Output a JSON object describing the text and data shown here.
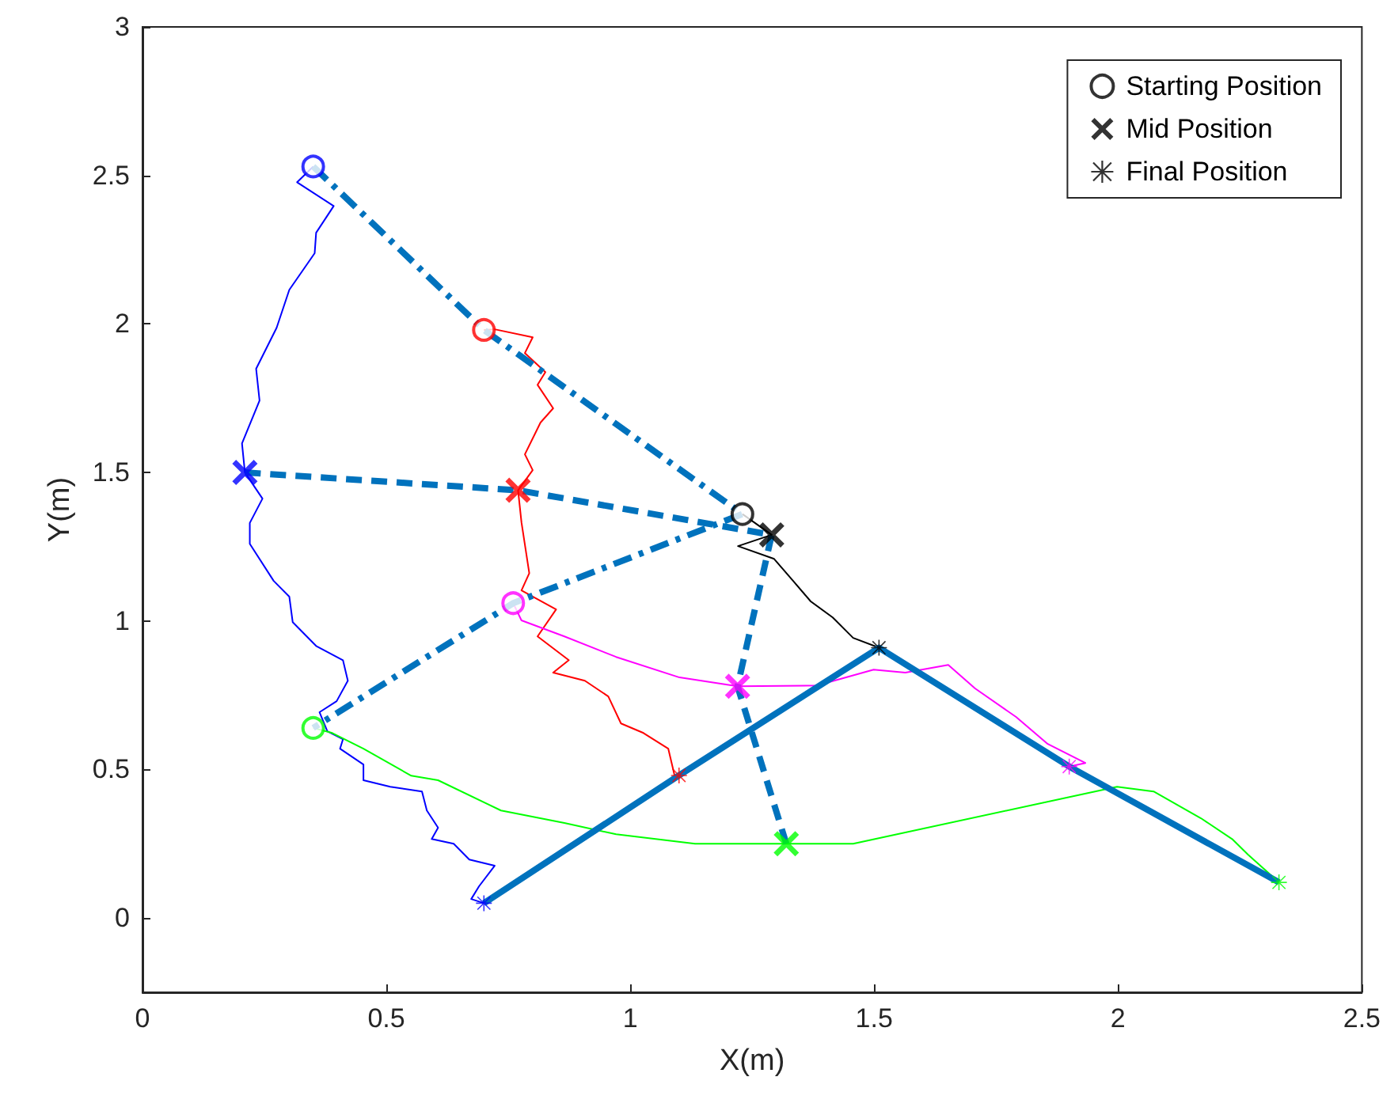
{
  "chart_data": {
    "type": "line",
    "xlabel": "X(m)",
    "ylabel": "Y(m)",
    "xlim": [
      0,
      2.5
    ],
    "xticks": [
      0,
      0.5,
      1,
      1.5,
      2,
      2.5
    ],
    "ylim": [
      -0.25,
      3
    ],
    "yticks": [
      0,
      0.5,
      1,
      1.5,
      2,
      2.5,
      3
    ],
    "grid": false,
    "legend": "top right",
    "series": [
      {
        "color": "#0000ff",
        "marker": "none",
        "line_style": "solid",
        "x": [
          0.35,
          0.317,
          0.392,
          0.356,
          0.353,
          0.301,
          0.275,
          0.233,
          0.24,
          0.204,
          0.21,
          0.246,
          0.22,
          0.22,
          0.269,
          0.301,
          0.308,
          0.356,
          0.411,
          0.421,
          0.398,
          0.363,
          0.379,
          0.411,
          0.405,
          0.453,
          0.453,
          0.508,
          0.573,
          0.583,
          0.606,
          0.593,
          0.638,
          0.67,
          0.722,
          0.69,
          0.674,
          0.7
        ],
        "values": [
          2.53,
          2.477,
          2.397,
          2.307,
          2.238,
          2.115,
          1.987,
          1.849,
          1.742,
          1.598,
          1.5,
          1.412,
          1.33,
          1.26,
          1.135,
          1.082,
          0.996,
          0.916,
          0.868,
          0.799,
          0.73,
          0.693,
          0.629,
          0.602,
          0.57,
          0.517,
          0.464,
          0.442,
          0.426,
          0.362,
          0.304,
          0.266,
          0.25,
          0.197,
          0.176,
          0.107,
          0.064,
          0.05
        ]
      },
      {
        "color": "#ff0000",
        "marker": "none",
        "line_style": "solid",
        "x": [
          0.7,
          0.722,
          0.8,
          0.784,
          0.826,
          0.81,
          0.842,
          0.816,
          0.784,
          0.8,
          0.77,
          0.777,
          0.793,
          0.777,
          0.848,
          0.81,
          0.874,
          0.842,
          0.907,
          0.955,
          0.981,
          1.027,
          1.078,
          1.091,
          1.1
        ],
        "values": [
          1.98,
          1.982,
          1.955,
          1.902,
          1.838,
          1.795,
          1.716,
          1.668,
          1.561,
          1.508,
          1.44,
          1.332,
          1.161,
          1.103,
          1.039,
          0.948,
          0.868,
          0.826,
          0.799,
          0.746,
          0.655,
          0.623,
          0.57,
          0.479,
          0.48
        ]
      },
      {
        "color": "#000000",
        "marker": "none",
        "line_style": "solid",
        "x": [
          1.23,
          1.29,
          1.221,
          1.295,
          1.334,
          1.37,
          1.415,
          1.457,
          1.51
        ],
        "values": [
          1.36,
          1.29,
          1.252,
          1.209,
          1.135,
          1.066,
          1.012,
          0.943,
          0.91
        ]
      },
      {
        "color": "#ff00ff",
        "marker": "none",
        "line_style": "solid",
        "x": [
          0.76,
          0.777,
          0.865,
          0.971,
          1.101,
          1.22,
          1.383,
          1.499,
          1.564,
          1.652,
          1.707,
          1.791,
          1.856,
          1.933,
          1.9
        ],
        "values": [
          1.06,
          1.002,
          0.948,
          0.879,
          0.81,
          0.78,
          0.783,
          0.836,
          0.826,
          0.852,
          0.773,
          0.677,
          0.586,
          0.522,
          0.51
        ]
      },
      {
        "color": "#00ff00",
        "marker": "none",
        "line_style": "solid",
        "x": [
          0.35,
          0.389,
          0.453,
          0.551,
          0.606,
          0.735,
          0.865,
          0.971,
          1.133,
          1.32,
          1.457,
          1.998,
          2.073,
          2.17,
          2.234,
          2.267,
          2.33
        ],
        "values": [
          0.64,
          0.623,
          0.57,
          0.479,
          0.464,
          0.362,
          0.32,
          0.282,
          0.25,
          0.25,
          0.25,
          0.442,
          0.426,
          0.336,
          0.266,
          0.213,
          0.12
        ]
      },
      {
        "color": "#0072bd",
        "marker": "none",
        "line_style": "dashdot",
        "x": [
          0.35,
          0.7,
          1.23,
          0.76,
          0.35
        ],
        "values": [
          2.53,
          1.98,
          1.36,
          1.06,
          0.64
        ]
      },
      {
        "color": "#0072bd",
        "marker": "none",
        "line_style": "dashed",
        "x": [
          0.21,
          0.77,
          1.29,
          1.22,
          1.32
        ],
        "values": [
          1.5,
          1.44,
          1.29,
          0.78,
          0.25
        ]
      },
      {
        "color": "#0072bd",
        "marker": "none",
        "line_style": "solid",
        "x": [
          0.7,
          1.1,
          1.51,
          1.9,
          2.33
        ],
        "values": [
          0.05,
          0.48,
          0.91,
          0.51,
          0.12
        ]
      },
      {
        "type": "scatter",
        "name": "Starting Position",
        "color": "#000000",
        "marker": "circle",
        "colors": [
          "#0000ff",
          "#ff0000",
          "#000000",
          "#ff00ff",
          "#00ff00"
        ],
        "x": [
          0.35,
          0.7,
          1.23,
          0.76,
          0.35
        ],
        "values": [
          2.53,
          1.98,
          1.36,
          1.06,
          0.64
        ]
      },
      {
        "type": "scatter",
        "name": "Mid Position",
        "color": "#000000",
        "marker": "cross",
        "colors": [
          "#0000ff",
          "#ff0000",
          "#000000",
          "#ff00ff",
          "#00ff00"
        ],
        "x": [
          0.21,
          0.77,
          1.29,
          1.22,
          1.32
        ],
        "values": [
          1.5,
          1.44,
          1.29,
          0.78,
          0.25
        ]
      },
      {
        "type": "scatter",
        "name": "Final Position",
        "color": "#000000",
        "marker": "star",
        "colors": [
          "#0000ff",
          "#ff0000",
          "#000000",
          "#ff00ff",
          "#00ff00"
        ],
        "x": [
          0.7,
          1.1,
          1.51,
          1.9,
          2.33
        ],
        "values": [
          0.05,
          0.48,
          0.91,
          0.51,
          0.12
        ]
      }
    ]
  }
}
